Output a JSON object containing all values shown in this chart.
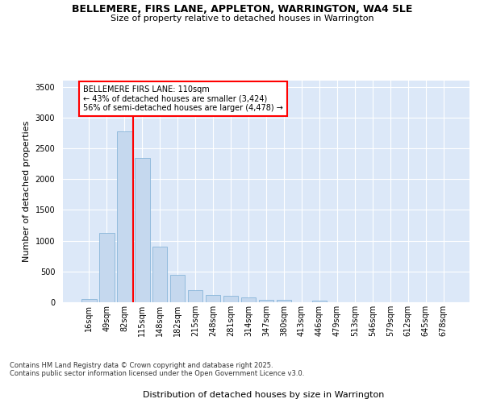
{
  "title": "BELLEMERE, FIRS LANE, APPLETON, WARRINGTON, WA4 5LE",
  "subtitle": "Size of property relative to detached houses in Warrington",
  "xlabel": "Distribution of detached houses by size in Warrington",
  "ylabel": "Number of detached properties",
  "categories": [
    "16sqm",
    "49sqm",
    "82sqm",
    "115sqm",
    "148sqm",
    "182sqm",
    "215sqm",
    "248sqm",
    "281sqm",
    "314sqm",
    "347sqm",
    "380sqm",
    "413sqm",
    "446sqm",
    "479sqm",
    "513sqm",
    "546sqm",
    "579sqm",
    "612sqm",
    "645sqm",
    "678sqm"
  ],
  "values": [
    50,
    1130,
    2780,
    2340,
    900,
    450,
    200,
    115,
    110,
    75,
    45,
    35,
    0,
    20,
    0,
    0,
    0,
    0,
    0,
    0,
    0
  ],
  "bar_color": "#c5d8ee",
  "bar_edgecolor": "#7aadd4",
  "vline_x": 2.5,
  "vline_color": "red",
  "annotation_title": "BELLEMERE FIRS LANE: 110sqm",
  "annotation_line1": "← 43% of detached houses are smaller (3,424)",
  "annotation_line2": "56% of semi-detached houses are larger (4,478) →",
  "annotation_box_edgecolor": "red",
  "annotation_box_facecolor": "white",
  "ylim": [
    0,
    3600
  ],
  "yticks": [
    0,
    500,
    1000,
    1500,
    2000,
    2500,
    3000,
    3500
  ],
  "plot_bg_color": "#dce8f8",
  "fig_bg_color": "#ffffff",
  "grid_color": "white",
  "footer_line1": "Contains HM Land Registry data © Crown copyright and database right 2025.",
  "footer_line2": "Contains public sector information licensed under the Open Government Licence v3.0.",
  "title_fontsize": 9,
  "subtitle_fontsize": 8,
  "ylabel_fontsize": 8,
  "xlabel_fontsize": 8,
  "tick_fontsize": 7,
  "annotation_fontsize": 7,
  "footer_fontsize": 6
}
